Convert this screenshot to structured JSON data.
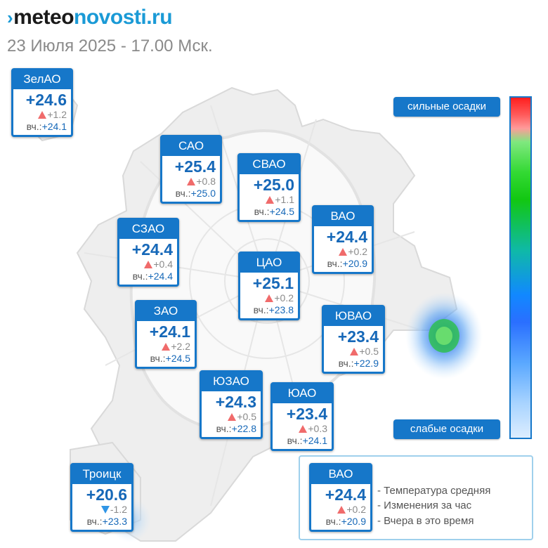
{
  "header": {
    "logo_prefix": "meteo",
    "logo_suffix": "novosti.ru",
    "subtitle": "23 Июля 2025 - 17.00 Мск."
  },
  "colors": {
    "card_accent": "#1677c9",
    "temp_text": "#1668b8",
    "rise": "#f06b6b",
    "fall": "#2f95e6"
  },
  "districts": [
    {
      "id": "zelao",
      "name": "ЗелАО",
      "temp": "+24.6",
      "trend": "up",
      "delta": "+1.2",
      "yest_label": "вч.:",
      "yest": "+24.1"
    },
    {
      "id": "sao",
      "name": "САО",
      "temp": "+25.4",
      "trend": "up",
      "delta": "+0.8",
      "yest_label": "вч.:",
      "yest": "+25.0"
    },
    {
      "id": "svao",
      "name": "СВАО",
      "temp": "+25.0",
      "trend": "up",
      "delta": "+1.1",
      "yest_label": "вч.:",
      "yest": "+24.5"
    },
    {
      "id": "vao",
      "name": "ВАО",
      "temp": "+24.4",
      "trend": "up",
      "delta": "+0.2",
      "yest_label": "вч.:",
      "yest": "+20.9"
    },
    {
      "id": "szao",
      "name": "СЗАО",
      "temp": "+24.4",
      "trend": "up",
      "delta": "+0.4",
      "yest_label": "вч.:",
      "yest": "+24.4"
    },
    {
      "id": "tsao",
      "name": "ЦАО",
      "temp": "+25.1",
      "trend": "up",
      "delta": "+0.2",
      "yest_label": "вч.:",
      "yest": "+23.8"
    },
    {
      "id": "zao",
      "name": "ЗАО",
      "temp": "+24.1",
      "trend": "up",
      "delta": "+2.2",
      "yest_label": "вч.:",
      "yest": "+24.5"
    },
    {
      "id": "yuvao",
      "name": "ЮВАО",
      "temp": "+23.4",
      "trend": "up",
      "delta": "+0.5",
      "yest_label": "вч.:",
      "yest": "+22.9"
    },
    {
      "id": "yuzao",
      "name": "ЮЗАО",
      "temp": "+24.3",
      "trend": "up",
      "delta": "+0.5",
      "yest_label": "вч.:",
      "yest": "+22.8"
    },
    {
      "id": "yuao",
      "name": "ЮАО",
      "temp": "+23.4",
      "trend": "up",
      "delta": "+0.3",
      "yest_label": "вч.:",
      "yest": "+24.1"
    },
    {
      "id": "troitsk",
      "name": "Троицк",
      "temp": "+20.6",
      "trend": "down",
      "delta": "-1.2",
      "yest_label": "вч.:",
      "yest": "+23.3"
    }
  ],
  "precip_scale": {
    "top_label": "сильные осадки",
    "bottom_label": "слабые осадки"
  },
  "legend": {
    "sample": {
      "name": "ВАО",
      "temp": "+24.4",
      "trend": "up",
      "delta": "+0.2",
      "yest_label": "вч.:",
      "yest": "+20.9"
    },
    "line1": "- Температура средняя",
    "line2": "- Изменения за час",
    "line3": "- Вчера в это время"
  }
}
